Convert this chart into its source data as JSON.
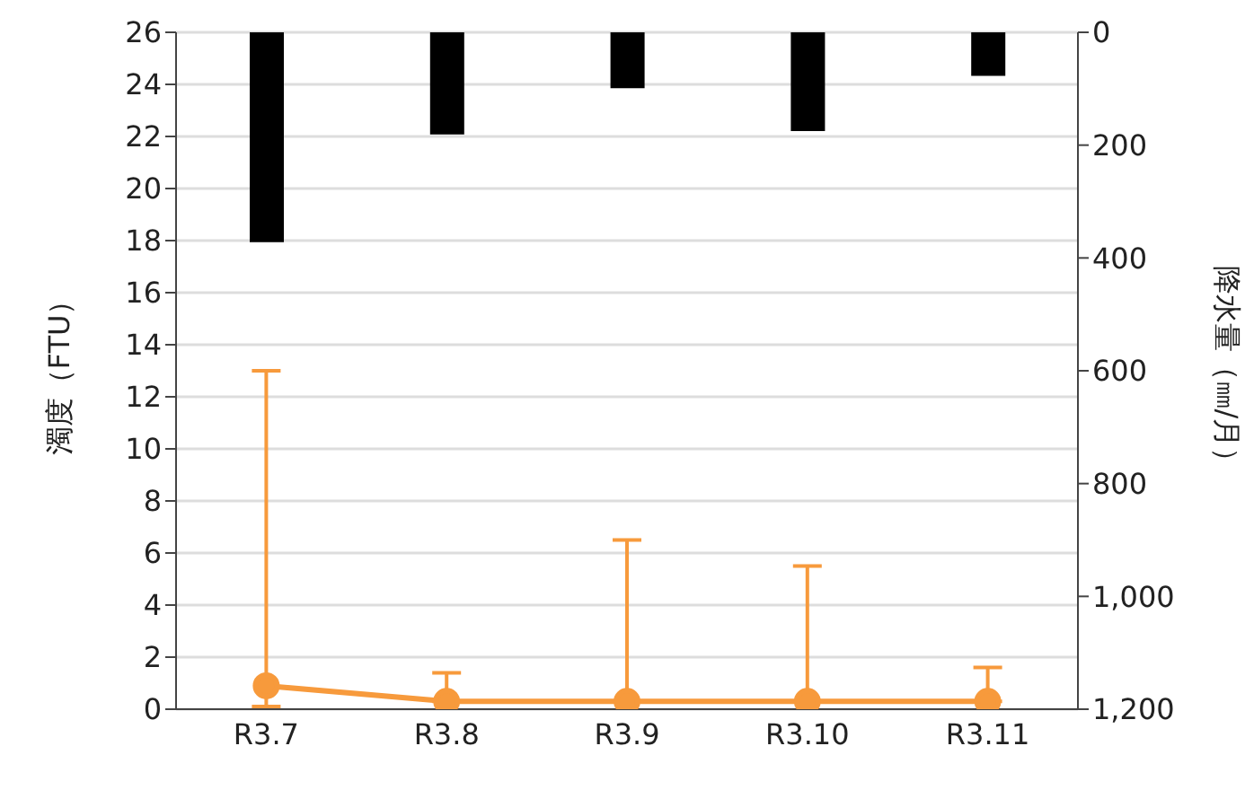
{
  "chart_data": {
    "type": "line",
    "xlabel": null,
    "ylabel": "濁度（FTU）",
    "y2label": "降水量（㎜/月）",
    "categories": [
      "R3.7",
      "R3.8",
      "R3.9",
      "R3.10",
      "R3.11"
    ],
    "series": [
      {
        "type": "bar",
        "axis": "y2",
        "color": "#000000",
        "values": [
          372,
          181,
          99,
          175,
          77
        ]
      },
      {
        "color": "#f79a3c",
        "values": [
          0.9,
          0.3,
          0.3,
          0.3,
          0.3
        ],
        "errors": [
          [
            0.1,
            13
          ],
          [
            0.3,
            1.4
          ],
          [
            0.3,
            6.5
          ],
          [
            0.3,
            5.5
          ],
          [
            0.3,
            1.6
          ]
        ]
      }
    ],
    "ylim": [
      0,
      26
    ],
    "yticks": [
      0,
      2,
      4,
      6,
      8,
      10,
      12,
      14,
      16,
      18,
      20,
      22,
      24,
      26
    ],
    "y2lim": [
      1200,
      0
    ],
    "y2ticks": [
      0,
      200,
      400,
      600,
      800,
      {
        "value": 1000,
        "label": "1,000"
      },
      {
        "value": 1200,
        "label": "1,200"
      }
    ],
    "grid": "y",
    "legend": false,
    "marker": "circle",
    "line_style": "solid"
  }
}
